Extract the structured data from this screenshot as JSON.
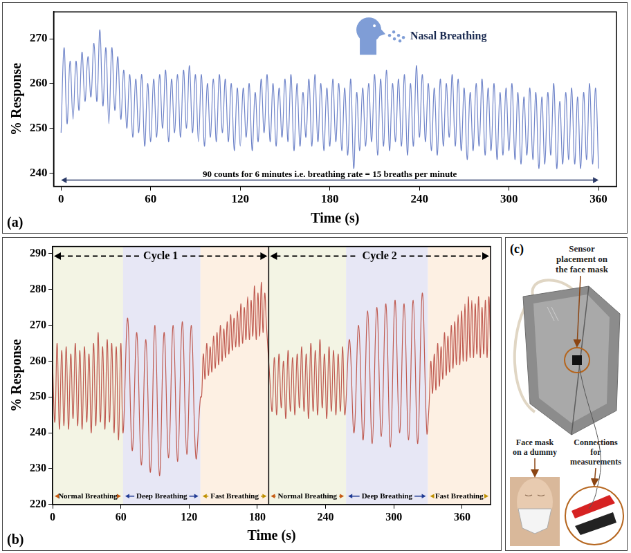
{
  "chart_data": [
    {
      "type": "line",
      "panel": "(a)",
      "annotations": [
        {
          "text": "Nasal Breathing"
        },
        {
          "text": "90 counts for 6 minutes i.e. breathing rate = 15 breaths per minute",
          "x": [
            0,
            360
          ]
        }
      ],
      "x_label": "Time (s)",
      "y_label": "% Response",
      "x": [
        0,
        2,
        4,
        6,
        8,
        10,
        12,
        14,
        16,
        18,
        20,
        22,
        24,
        26,
        28,
        30,
        32,
        34,
        36,
        38,
        40,
        42,
        44,
        46,
        48,
        50,
        52,
        54,
        56,
        58,
        60,
        62,
        64,
        66,
        68,
        70,
        72,
        74,
        76,
        78,
        80,
        82,
        84,
        86,
        88,
        90,
        92,
        94,
        96,
        98,
        100,
        102,
        104,
        106,
        108,
        110,
        112,
        114,
        116,
        118,
        120,
        122,
        124,
        126,
        128,
        130,
        132,
        134,
        136,
        138,
        140,
        142,
        144,
        146,
        148,
        150,
        152,
        154,
        156,
        158,
        160,
        162,
        164,
        166,
        168,
        170,
        172,
        174,
        176,
        178,
        180,
        182,
        184,
        186,
        188,
        190,
        192,
        194,
        196,
        198,
        200,
        202,
        204,
        206,
        208,
        210,
        212,
        214,
        216,
        218,
        220,
        222,
        224,
        226,
        228,
        230,
        232,
        234,
        236,
        238,
        240,
        242,
        244,
        246,
        248,
        250,
        252,
        254,
        256,
        258,
        260,
        262,
        264,
        266,
        268,
        270,
        272,
        274,
        276,
        278,
        280,
        282,
        284,
        286,
        288,
        290,
        292,
        294,
        296,
        298,
        300,
        302,
        304,
        306,
        308,
        310,
        312,
        314,
        316,
        318,
        320,
        322,
        324,
        326,
        328,
        330,
        332,
        334,
        336,
        338,
        340,
        342,
        344,
        346,
        348,
        350,
        352,
        354,
        356,
        358,
        360
      ],
      "values": [
        249,
        268,
        251,
        265,
        252,
        265,
        254,
        267,
        256,
        266,
        257,
        269,
        256,
        272,
        255,
        268,
        251,
        268,
        254,
        266,
        252,
        263,
        250,
        262,
        248,
        261,
        249,
        262,
        246,
        260,
        247,
        261,
        248,
        262,
        250,
        263,
        247,
        261,
        249,
        262,
        248,
        263,
        250,
        264,
        249,
        262,
        247,
        262,
        246,
        260,
        248,
        261,
        247,
        262,
        249,
        261,
        247,
        260,
        245,
        259,
        246,
        259,
        248,
        260,
        245,
        258,
        247,
        261,
        249,
        262,
        247,
        260,
        246,
        259,
        248,
        261,
        247,
        262,
        245,
        260,
        246,
        258,
        248,
        261,
        246,
        262,
        247,
        260,
        245,
        259,
        246,
        261,
        247,
        260,
        245,
        259,
        244,
        261,
        241,
        258,
        245,
        259,
        246,
        260,
        247,
        262,
        244,
        261,
        246,
        263,
        245,
        260,
        247,
        261,
        246,
        262,
        244,
        260,
        246,
        264,
        248,
        262,
        247,
        260,
        245,
        259,
        244,
        261,
        246,
        260,
        248,
        262,
        246,
        261,
        245,
        259,
        243,
        258,
        245,
        260,
        246,
        261,
        244,
        259,
        245,
        260,
        243,
        258,
        244,
        259,
        245,
        260,
        243,
        258,
        242,
        257,
        244,
        259,
        243,
        258,
        241,
        257,
        242,
        258,
        244,
        260,
        241,
        256,
        242,
        258,
        243,
        259,
        242,
        257,
        241,
        258,
        243,
        260,
        242,
        259,
        241
      ],
      "color": "#6f84c9",
      "xlim": [
        -5,
        372
      ],
      "xticks": [
        0,
        60,
        120,
        180,
        240,
        300,
        360
      ],
      "ylim": [
        237,
        276
      ],
      "yticks": [
        240,
        250,
        260,
        270
      ],
      "grid": false
    },
    {
      "type": "line",
      "panel": "(b)",
      "x_label": "Time (s)",
      "y_label": "% Response",
      "x": [
        0,
        2,
        4,
        6,
        8,
        10,
        12,
        14,
        16,
        18,
        20,
        22,
        24,
        26,
        28,
        30,
        32,
        34,
        36,
        38,
        40,
        42,
        44,
        46,
        48,
        50,
        52,
        54,
        56,
        58,
        60,
        62,
        66,
        70,
        74,
        78,
        82,
        86,
        90,
        94,
        98,
        102,
        106,
        110,
        114,
        118,
        122,
        126,
        130,
        131,
        132.5,
        134,
        135.5,
        137,
        138.5,
        140,
        141.5,
        143,
        144.5,
        146,
        147.5,
        149,
        150.5,
        152,
        153.5,
        155,
        156.5,
        158,
        159.5,
        161,
        162.5,
        164,
        165.5,
        167,
        168.5,
        170,
        171.5,
        173,
        174.5,
        176,
        177.5,
        179,
        180.5,
        182,
        183.5,
        185,
        186.5,
        188,
        191,
        193,
        195,
        197,
        199,
        201,
        203,
        205,
        207,
        209,
        211,
        213,
        215,
        217,
        219,
        221,
        223,
        225,
        227,
        229,
        231,
        233,
        235,
        237,
        239,
        241,
        243,
        245,
        247,
        249,
        251,
        253,
        255,
        257,
        261,
        265,
        269,
        273,
        277,
        281,
        285,
        289,
        293,
        297,
        301,
        305,
        309,
        313,
        317,
        321,
        325,
        329,
        331,
        332.5,
        334,
        335.5,
        337,
        338.5,
        340,
        341.5,
        343,
        344.5,
        346,
        347.5,
        349,
        350.5,
        352,
        353.5,
        355,
        356.5,
        358,
        359.5,
        361,
        362.5,
        364,
        365.5,
        367,
        368.5,
        370,
        371.5,
        373,
        374.5,
        376,
        377.5,
        379,
        380.5,
        382,
        383.5,
        385
      ],
      "values": [
        259,
        243,
        265,
        241,
        263,
        242,
        264,
        241,
        262,
        244,
        265,
        242,
        263,
        241,
        264,
        243,
        262,
        240,
        265,
        242,
        268,
        243,
        264,
        241,
        266,
        243,
        265,
        240,
        264,
        238,
        265,
        240,
        272,
        235,
        268,
        231,
        266,
        229,
        270,
        228,
        268,
        233,
        270,
        232,
        271,
        234,
        270,
        233,
        250,
        250,
        262,
        255,
        265,
        256,
        264,
        257,
        267,
        258,
        268,
        259,
        270,
        260,
        269,
        261,
        271,
        262,
        273,
        263,
        272,
        264,
        274,
        264,
        276,
        265,
        275,
        266,
        278,
        266,
        277,
        267,
        281,
        266,
        279,
        267,
        282,
        268,
        279,
        270,
        255,
        246,
        261,
        245,
        262,
        247,
        260,
        244,
        263,
        246,
        261,
        245,
        262,
        247,
        264,
        246,
        262,
        244,
        265,
        246,
        263,
        245,
        266,
        247,
        262,
        244,
        264,
        246,
        263,
        245,
        262,
        246,
        264,
        245,
        266,
        240,
        270,
        238,
        274,
        237,
        275,
        239,
        276,
        236,
        277,
        240,
        276,
        238,
        277,
        237,
        279,
        240,
        248,
        260,
        251,
        262,
        252,
        265,
        253,
        264,
        255,
        268,
        256,
        267,
        257,
        270,
        258,
        271,
        259,
        273,
        259,
        274,
        260,
        276,
        260,
        278,
        261,
        277,
        261,
        276,
        262,
        278,
        261,
        275,
        262,
        277,
        261,
        278,
        263
      ],
      "color": "#bf5a50",
      "regions": [
        {
          "label": "Normal Breathing",
          "x": [
            0,
            62
          ],
          "color": "#f3f4e4"
        },
        {
          "label": "Deep Breathing",
          "x": [
            62,
            130
          ],
          "color": "#e7e7f5"
        },
        {
          "label": "Fast Breathing",
          "x": [
            130,
            190
          ],
          "color": "#fdf0e3"
        },
        {
          "label": "Normal Breathing",
          "x": [
            190,
            258
          ],
          "color": "#f3f4e4"
        },
        {
          "label": "Deep Breathing",
          "x": [
            258,
            330
          ],
          "color": "#e7e7f5"
        },
        {
          "label": "Fast Breathing",
          "x": [
            330,
            385
          ],
          "color": "#fdf0e3"
        }
      ],
      "cycles": [
        {
          "label": "Cycle 1",
          "x": [
            0,
            190
          ]
        },
        {
          "label": "Cycle 2",
          "x": [
            190,
            385
          ]
        }
      ],
      "xlim": [
        0,
        385
      ],
      "xticks": [
        0,
        60,
        120,
        180,
        240,
        300,
        360
      ],
      "ylim": [
        220,
        292
      ],
      "yticks": [
        220,
        230,
        240,
        250,
        260,
        270,
        280,
        290
      ],
      "grid": false
    }
  ],
  "panel_c": {
    "label": "(c)",
    "callouts": {
      "sensor": "Sensor placement on the face mask",
      "connections": "Connections for measurements",
      "dummy": "Face mask on a dummy"
    }
  }
}
